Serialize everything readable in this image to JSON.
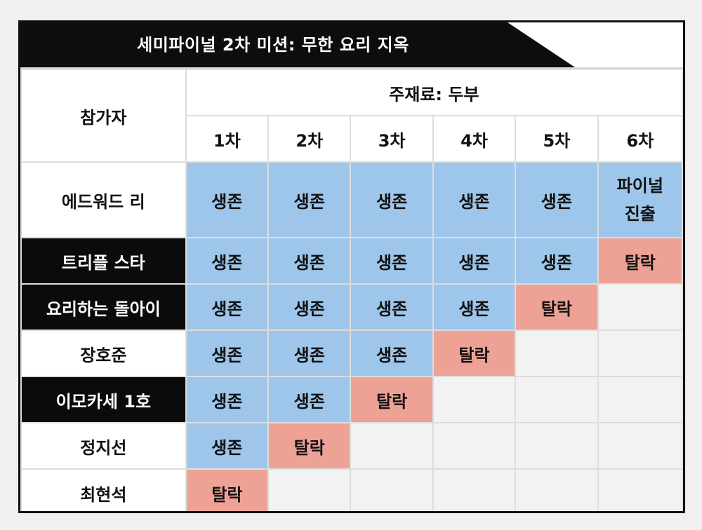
{
  "title": "세미파이널 2차 미션: 무한 요리 지옥",
  "header": {
    "participant_label": "참가자",
    "ingredient_label": "주재료: 두부",
    "rounds": [
      "1차",
      "2차",
      "3차",
      "4차",
      "5차",
      "6차"
    ]
  },
  "status_labels": {
    "survive": "생존",
    "eliminated": "탈락",
    "final": "파이널 진출"
  },
  "colors": {
    "survive": "#9ec6ea",
    "eliminated": "#eea295",
    "empty": "#f2f2f2",
    "highlight_name_bg": "#0b0b0b"
  },
  "rows": [
    {
      "name": "에드워드 리",
      "highlight": false,
      "results": [
        "생존",
        "생존",
        "생존",
        "생존",
        "생존",
        "파이널\n진출"
      ]
    },
    {
      "name": "트리플 스타",
      "highlight": true,
      "results": [
        "생존",
        "생존",
        "생존",
        "생존",
        "생존",
        "탈락"
      ]
    },
    {
      "name": "요리하는 돌아이",
      "highlight": true,
      "results": [
        "생존",
        "생존",
        "생존",
        "생존",
        "탈락",
        ""
      ]
    },
    {
      "name": "장호준",
      "highlight": false,
      "results": [
        "생존",
        "생존",
        "생존",
        "탈락",
        "",
        ""
      ]
    },
    {
      "name": "이모카세 1호",
      "highlight": true,
      "results": [
        "생존",
        "생존",
        "탈락",
        "",
        "",
        ""
      ]
    },
    {
      "name": "정지선",
      "highlight": false,
      "results": [
        "생존",
        "탈락",
        "",
        "",
        "",
        ""
      ]
    },
    {
      "name": "최현석",
      "highlight": false,
      "results": [
        "탈락",
        "",
        "",
        "",
        "",
        ""
      ]
    }
  ]
}
